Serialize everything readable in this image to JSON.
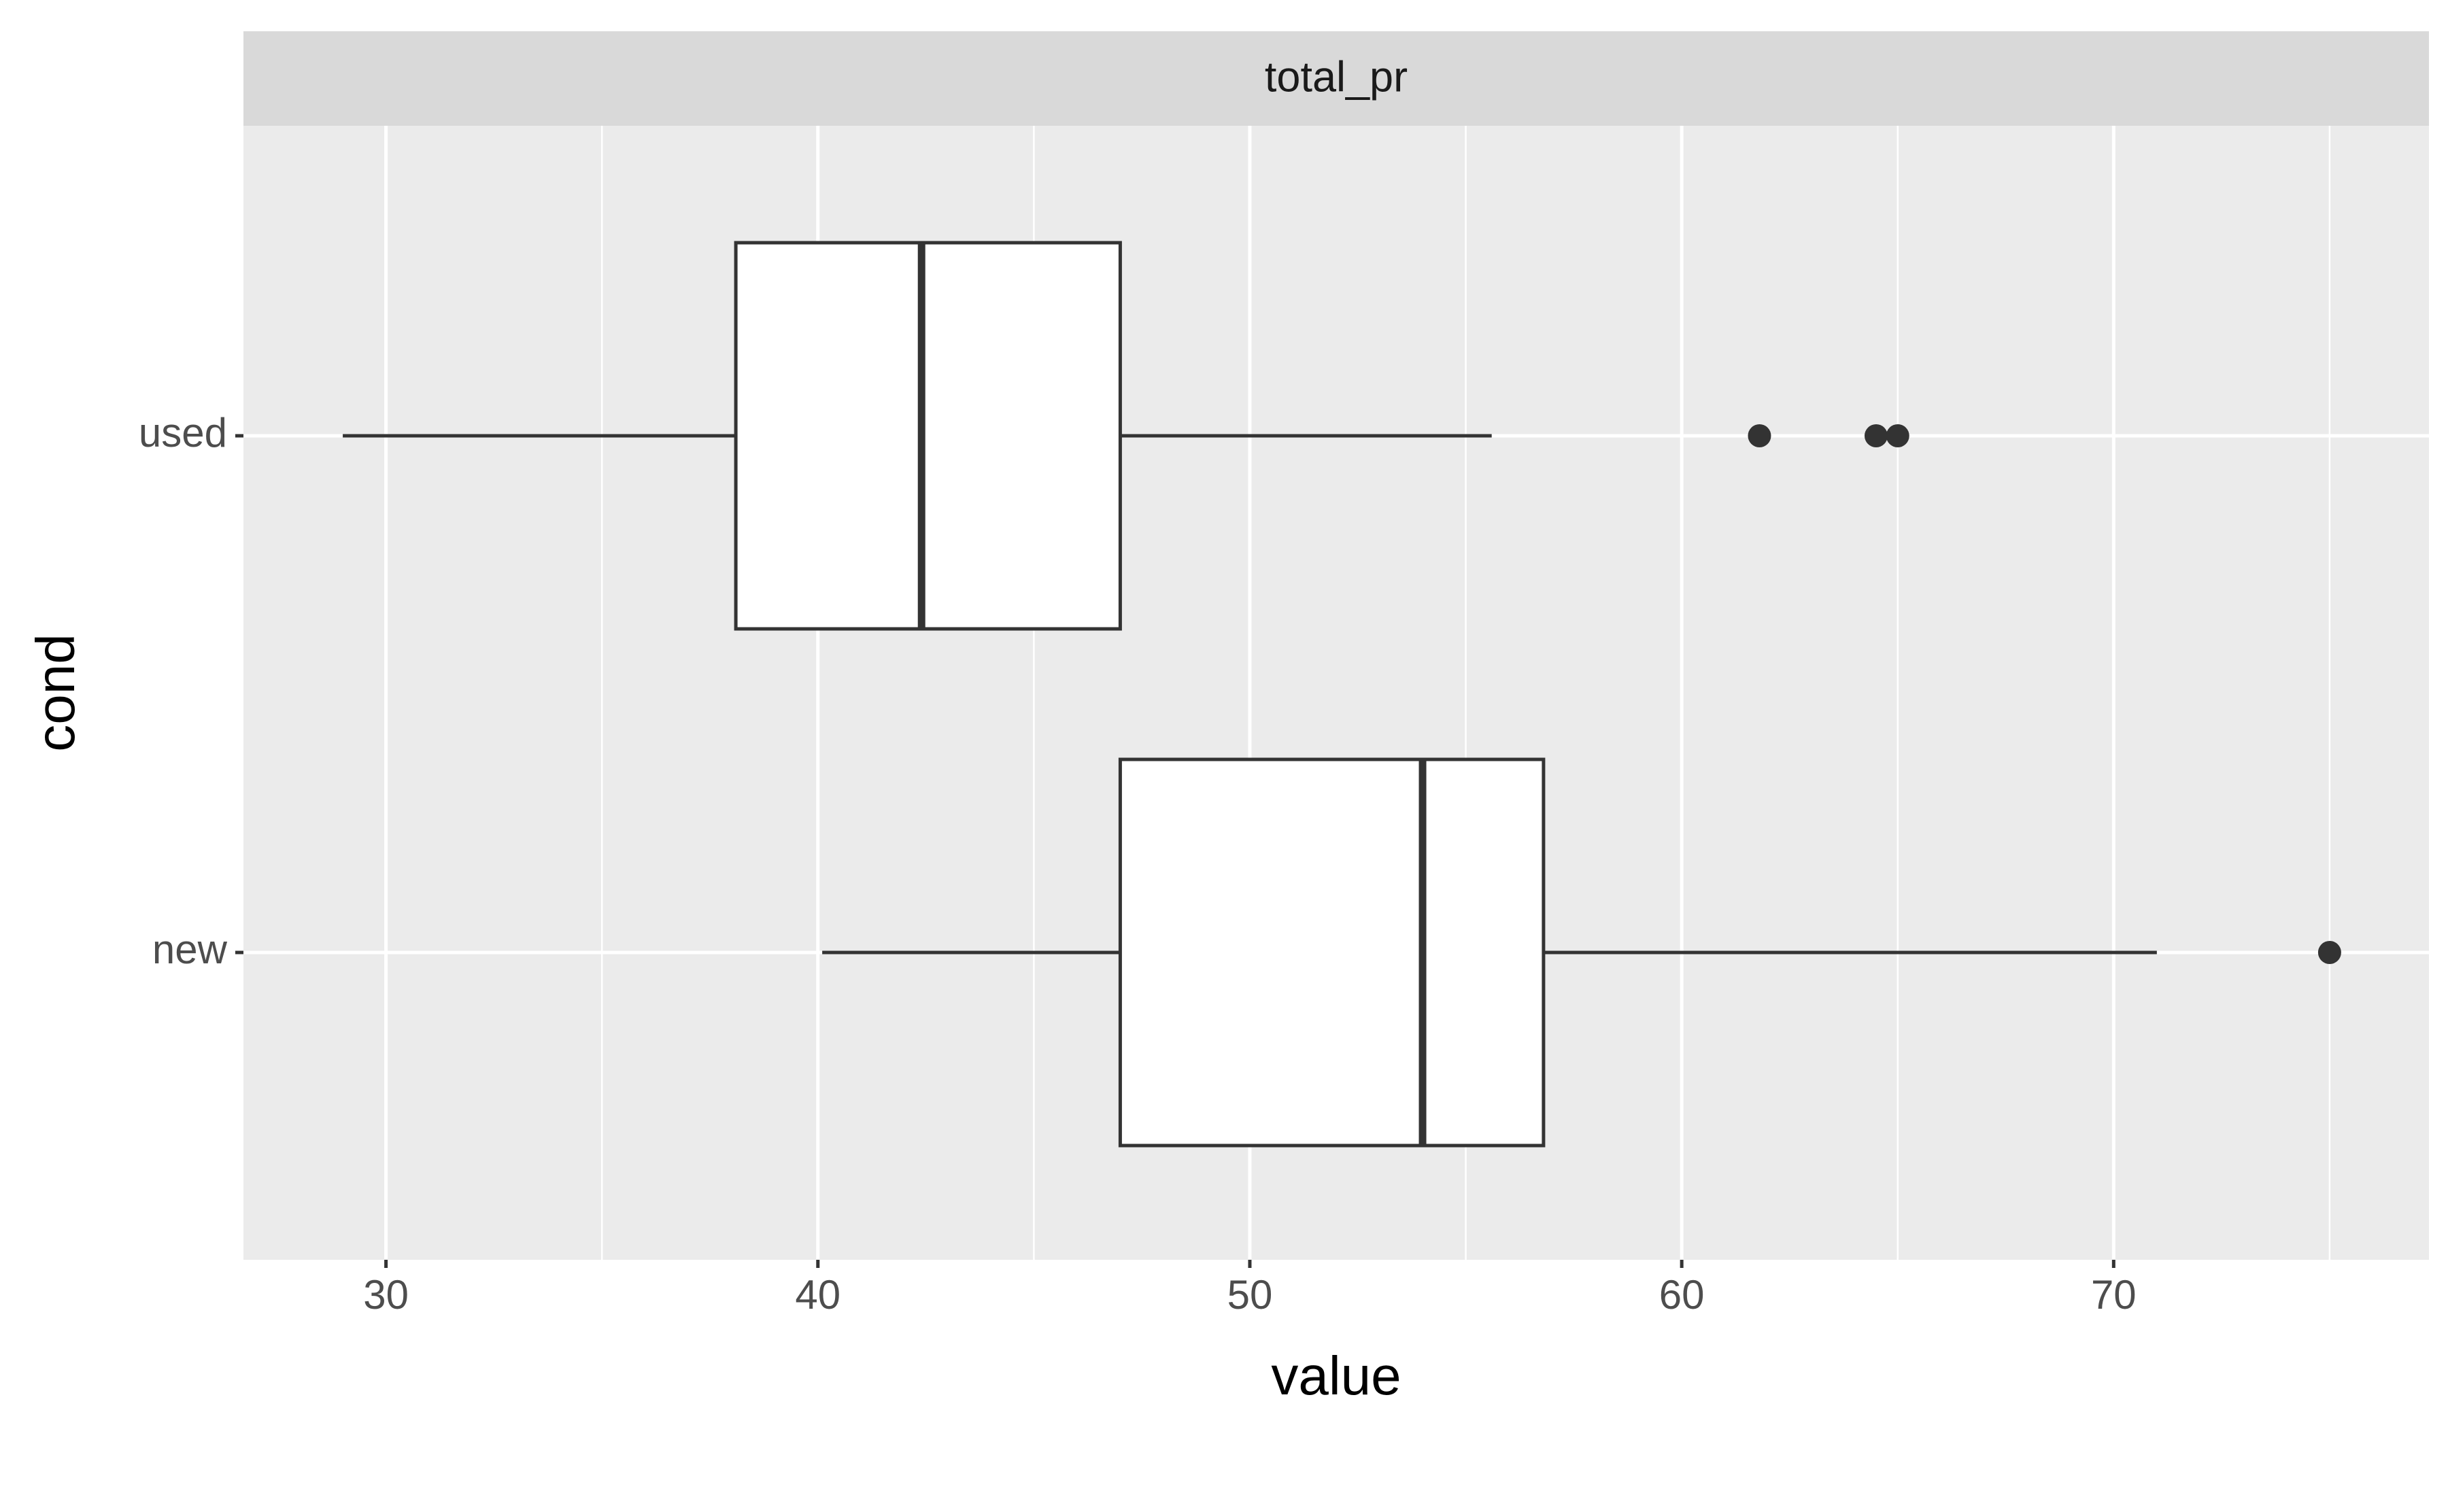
{
  "chart_data": {
    "type": "boxplot",
    "orientation": "horizontal",
    "facet_title": "total_pr",
    "xlabel": "value",
    "ylabel": "cond",
    "categories": [
      "used",
      "new"
    ],
    "boxes": [
      {
        "whislo": 29,
        "q1": 38.1,
        "med": 42.4,
        "q3": 47,
        "whishi": 55.6,
        "fliers": [
          61.8,
          64.5,
          65
        ]
      },
      {
        "whislo": 40.1,
        "q1": 47,
        "med": 54,
        "q3": 56.8,
        "whishi": 71,
        "fliers": [
          75
        ]
      }
    ],
    "color": "#333333",
    "fill": "#ffffff",
    "xlim": [
      26.7,
      77.3
    ],
    "xticks": [
      30,
      40,
      50,
      60,
      70
    ],
    "xminor": [
      35,
      45,
      55,
      65,
      75
    ],
    "grid": true
  }
}
